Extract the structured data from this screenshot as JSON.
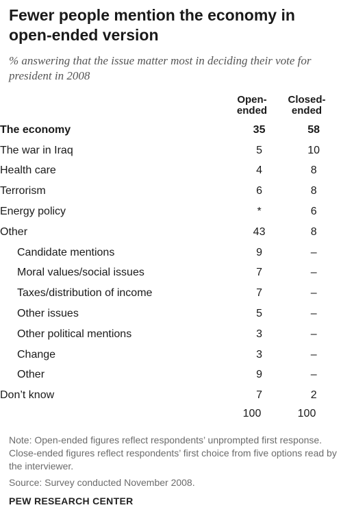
{
  "chart_data": {
    "type": "table",
    "title": "Fewer people mention the economy in open-ended version",
    "subtitle": "% answering that the issue matter most in deciding their vote for president in 2008",
    "columns": [
      "Open-ended",
      "Closed-ended"
    ],
    "rows": [
      {
        "label": "The economy",
        "open": "35",
        "closed": "58",
        "sub": false,
        "bold": true
      },
      {
        "label": "The war in Iraq",
        "open": "5",
        "closed": "10",
        "sub": false,
        "bold": false
      },
      {
        "label": "Health care",
        "open": "4",
        "closed": "8",
        "sub": false,
        "bold": false
      },
      {
        "label": "Terrorism",
        "open": "6",
        "closed": "8",
        "sub": false,
        "bold": false
      },
      {
        "label": "Energy policy",
        "open": "*",
        "closed": "6",
        "sub": false,
        "bold": false
      },
      {
        "label": "Other",
        "open": "43",
        "closed": "8",
        "sub": false,
        "bold": false
      },
      {
        "label": "Candidate mentions",
        "open": "9",
        "closed": "–",
        "sub": true,
        "bold": false
      },
      {
        "label": "Moral values/social issues",
        "open": "7",
        "closed": "–",
        "sub": true,
        "bold": false
      },
      {
        "label": "Taxes/distribution of income",
        "open": "7",
        "closed": "–",
        "sub": true,
        "bold": false
      },
      {
        "label": "Other issues",
        "open": "5",
        "closed": "–",
        "sub": true,
        "bold": false
      },
      {
        "label": "Other political mentions",
        "open": "3",
        "closed": "–",
        "sub": true,
        "bold": false
      },
      {
        "label": "Change",
        "open": "3",
        "closed": "–",
        "sub": true,
        "bold": false
      },
      {
        "label": "Other",
        "open": "9",
        "closed": "–",
        "sub": true,
        "bold": false
      },
      {
        "label": "Don’t know",
        "open": "7",
        "closed": "2",
        "sub": false,
        "bold": false
      }
    ],
    "totals": {
      "open": "100",
      "closed": "100"
    }
  },
  "header": {
    "col_open_line1": "Open-",
    "col_open_line2": "ended",
    "col_closed_line1": "Closed-",
    "col_closed_line2": "ended"
  },
  "footer": {
    "note": "Note: Open-ended figures reflect respondents’ unprompted first response. Close-ended figures reflect respondents’ first choice from five options read by the interviewer.",
    "source": "Source: Survey conducted November 2008.",
    "brand": "PEW RESEARCH CENTER"
  }
}
